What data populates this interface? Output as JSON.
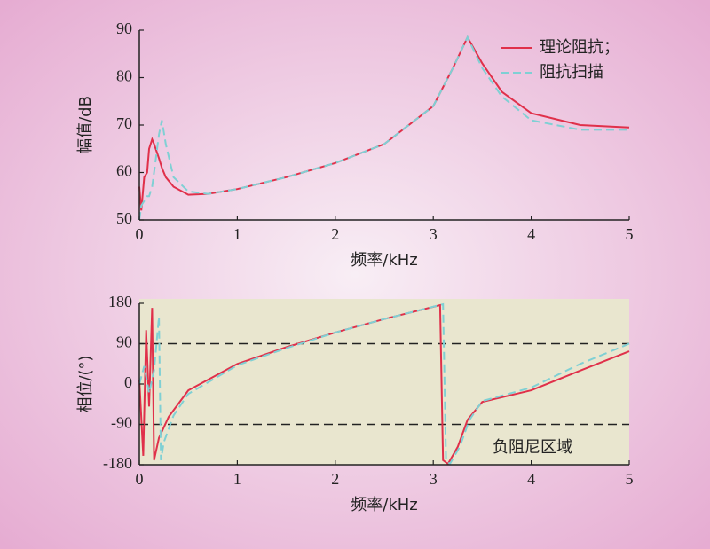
{
  "chart_data": [
    {
      "type": "line",
      "ylabel": "幅值/dB",
      "xlabel": "频率/kHz",
      "xlim": [
        0,
        5
      ],
      "xticks": [
        0,
        1,
        2,
        3,
        4,
        5
      ],
      "ylim": [
        50,
        90
      ],
      "yticks": [
        50,
        60,
        70,
        80,
        90
      ],
      "legend": "upper right",
      "series": [
        {
          "name": "理论阻抗；",
          "color": "#e0304a",
          "dash": false,
          "x": [
            0,
            0.02,
            0.05,
            0.08,
            0.1,
            0.13,
            0.15,
            0.2,
            0.23,
            0.27,
            0.35,
            0.5,
            0.7,
            1,
            1.5,
            2,
            2.5,
            3,
            3.2,
            3.35,
            3.5,
            3.7,
            4,
            4.5,
            5
          ],
          "values": [
            57,
            52,
            59,
            60,
            65,
            67,
            66,
            63,
            61,
            59,
            57,
            55.3,
            55.5,
            56.5,
            59,
            62,
            66,
            74,
            82,
            88.5,
            83,
            77,
            72.5,
            70,
            69.5
          ]
        },
        {
          "name": "阻抗扫描",
          "color": "#7fd0d4",
          "dash": true,
          "x": [
            0,
            0.02,
            0.05,
            0.08,
            0.1,
            0.13,
            0.15,
            0.2,
            0.23,
            0.27,
            0.35,
            0.5,
            0.7,
            1,
            1.5,
            2,
            2.5,
            3,
            3.2,
            3.35,
            3.5,
            3.7,
            4,
            4.5,
            5
          ],
          "values": [
            50,
            53,
            54,
            55,
            55,
            57,
            60,
            68,
            71,
            66,
            59,
            56,
            55.5,
            56.5,
            59,
            62,
            66,
            74,
            82,
            88.5,
            82,
            76,
            71,
            69,
            69
          ]
        }
      ]
    },
    {
      "type": "line",
      "ylabel": "相位/(°)",
      "xlabel": "频率/kHz",
      "annotation": "负阻尼区域",
      "xlim": [
        0,
        5
      ],
      "xticks": [
        0,
        1,
        2,
        3,
        4,
        5
      ],
      "ylim": [
        -180,
        180
      ],
      "yticks": [
        -180,
        -90,
        0,
        90,
        180
      ],
      "hlines": [
        90,
        -90
      ],
      "series": [
        {
          "color": "#e0304a",
          "dash": false,
          "x": [
            0,
            0.04,
            0.07,
            0.1,
            0.13,
            0.15,
            0.2,
            0.3,
            0.5,
            1,
            1.5,
            2,
            2.5,
            3.07,
            3.1,
            3.15,
            3.25,
            3.35,
            3.5,
            4,
            4.5,
            5
          ],
          "values": [
            10,
            -160,
            120,
            -50,
            170,
            -170,
            -120,
            -73,
            -14,
            45,
            82,
            115,
            145,
            176,
            -170,
            -178,
            -140,
            -80,
            -40,
            -14,
            30,
            73
          ]
        },
        {
          "color": "#7fd0d4",
          "dash": true,
          "x": [
            0,
            0.05,
            0.1,
            0.15,
            0.2,
            0.22,
            0.25,
            0.35,
            0.5,
            1,
            1.5,
            2,
            2.5,
            3.1,
            3.13,
            3.17,
            3.27,
            3.37,
            3.5,
            4,
            4.5,
            5
          ],
          "values": [
            0,
            40,
            -20,
            30,
            150,
            -170,
            -130,
            -70,
            -22,
            42,
            80,
            115,
            145,
            178,
            -170,
            -178,
            -140,
            -80,
            -38,
            -8,
            45,
            90
          ]
        }
      ]
    }
  ]
}
